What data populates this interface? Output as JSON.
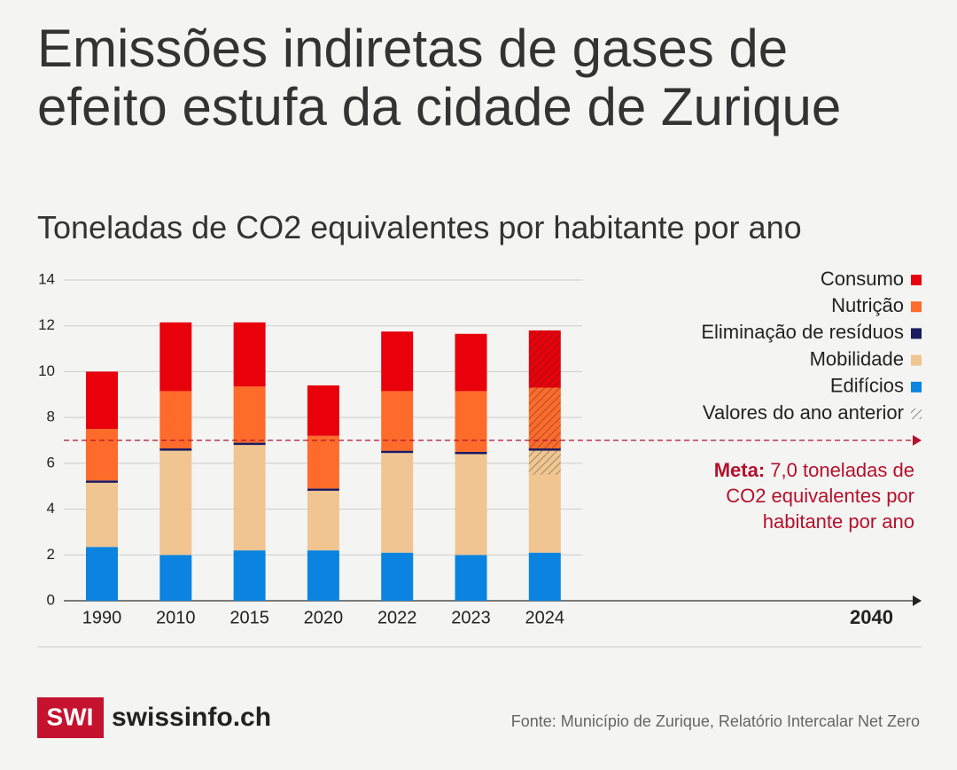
{
  "chart_data": {
    "type": "stacked-bar",
    "title": "Emissões indiretas de gases de efeito estufa da cidade de Zurique",
    "subtitle": "Toneladas de CO2 equivalentes por habitante por ano",
    "categories": [
      "1990",
      "2010",
      "2015",
      "2020",
      "2022",
      "2023",
      "2024"
    ],
    "series": [
      {
        "name": "Edifícios",
        "color": "#0a84e0",
        "values": [
          2.35,
          2.0,
          2.2,
          2.2,
          2.1,
          2.0,
          2.1
        ]
      },
      {
        "name": "Mobilidade",
        "color": "#f0c591",
        "values": [
          2.8,
          4.55,
          4.6,
          2.6,
          4.35,
          4.4,
          4.45
        ]
      },
      {
        "name": "Eliminação de resíduos",
        "color": "#1a1a5e",
        "values": [
          0.1,
          0.1,
          0.1,
          0.1,
          0.1,
          0.1,
          0.1
        ]
      },
      {
        "name": "Nutrição",
        "color": "#ff6b2b",
        "values": [
          2.25,
          2.5,
          2.45,
          2.3,
          2.6,
          2.65,
          2.65
        ]
      },
      {
        "name": "Consumo",
        "color": "#e8000b",
        "values": [
          2.5,
          3.0,
          2.8,
          2.2,
          2.6,
          2.5,
          2.5
        ]
      }
    ],
    "previous_year": {
      "name": "Valores do ano anterior",
      "category": "2024",
      "from": 5.5
    },
    "target": {
      "value": 7,
      "label_bold": "Meta:",
      "label_lines": [
        "7,0 toneladas de",
        "CO2 equivalentes por",
        "habitante por ano"
      ],
      "color": "#b5102c"
    },
    "x_end_label": "2040",
    "ylim": [
      0,
      14
    ],
    "yticks": [
      0,
      2,
      4,
      6,
      8,
      10,
      12,
      14
    ],
    "grid": true
  },
  "footer": {
    "logo": "SWI",
    "brand": "swissinfo.ch",
    "source": "Fonte: Município de Zurique, Relatório Intercalar Net Zero"
  }
}
